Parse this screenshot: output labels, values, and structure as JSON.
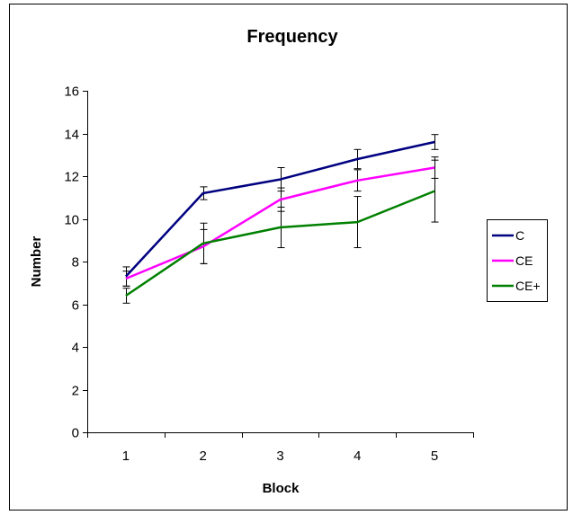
{
  "chart_data": {
    "type": "line",
    "title": "Frequency",
    "xlabel": "Block",
    "ylabel": "Number",
    "categories": [
      "1",
      "2",
      "3",
      "4",
      "5"
    ],
    "ylim": [
      0,
      16
    ],
    "yticks": [
      0,
      2,
      4,
      6,
      8,
      10,
      12,
      14,
      16
    ],
    "grid": false,
    "legend_position": "right",
    "series": [
      {
        "name": "C",
        "color": "#000080",
        "values": [
          7.3,
          11.2,
          11.85,
          12.8,
          13.6
        ],
        "error": [
          0.45,
          0.3,
          0.55,
          0.45,
          0.35
        ]
      },
      {
        "name": "CE",
        "color": "#ff00ff",
        "values": [
          7.2,
          8.7,
          10.9,
          11.8,
          12.4
        ],
        "error": [
          0.35,
          0.8,
          0.55,
          0.5,
          0.5
        ]
      },
      {
        "name": "CE+",
        "color": "#008000",
        "values": [
          6.4,
          8.85,
          9.6,
          9.85,
          11.3
        ],
        "error": [
          0.35,
          0.95,
          0.95,
          1.2,
          1.45
        ]
      }
    ]
  }
}
